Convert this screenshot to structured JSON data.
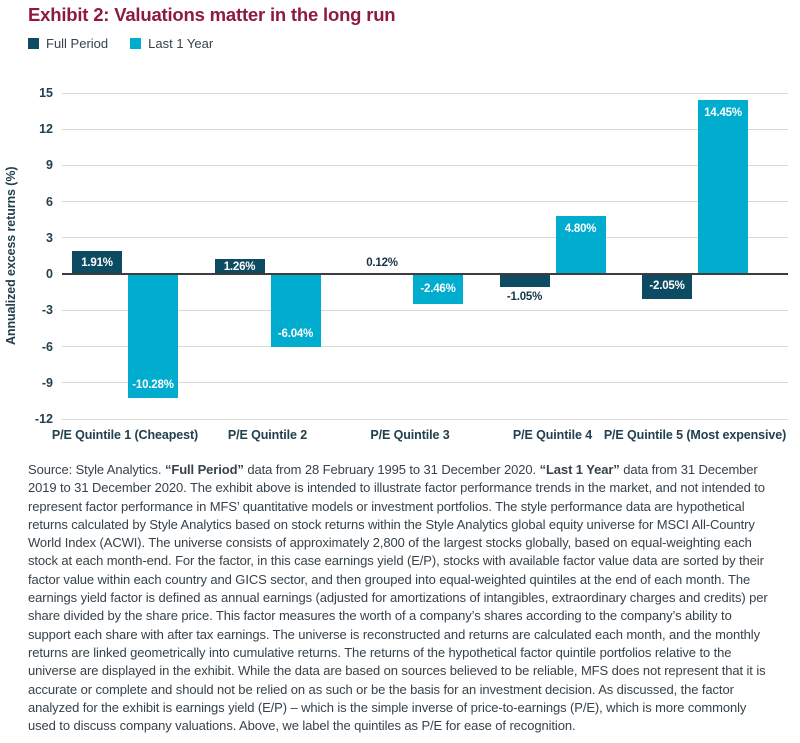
{
  "title": "Exhibit 2: Valuations matter in the long run",
  "colors": {
    "title": "#8e1b3d",
    "full_period": "#0d4b63",
    "last_1_year": "#00adce",
    "axis_text": "#22404f",
    "body_text": "#37424a",
    "gridline": "#d9d9d9",
    "zero_line": "#3d3d3d"
  },
  "legend": {
    "items": [
      {
        "label": "Full Period",
        "color": "#0d4b63"
      },
      {
        "label": "Last 1 Year",
        "color": "#00adce"
      }
    ]
  },
  "chart_data": {
    "type": "bar",
    "title": "Exhibit 2: Valuations matter in the long run",
    "ylabel": "Annualized excess returns (%)",
    "xlabel": "",
    "ylim": [
      -12,
      15
    ],
    "yticks": [
      15,
      12,
      9,
      6,
      3,
      0,
      -3,
      -6,
      -9,
      -12
    ],
    "grid": true,
    "legend_position": "top-left",
    "categories": [
      "P/E Quintile 1 (Cheapest)",
      "P/E Quintile 2",
      "P/E Quintile 3",
      "P/E Quintile 4",
      "P/E Quintile 5 (Most expensive)"
    ],
    "series": [
      {
        "name": "Full Period",
        "color": "#0d4b63",
        "values": [
          1.91,
          1.26,
          0.12,
          -1.05,
          -2.05
        ],
        "labels": [
          "1.91%",
          "1.26%",
          "0.12%",
          "-1.05%",
          "-2.05%"
        ]
      },
      {
        "name": "Last 1 Year",
        "color": "#00adce",
        "values": [
          -10.28,
          -6.04,
          -2.46,
          4.8,
          14.45
        ],
        "labels": [
          "-10.28%",
          "-6.04%",
          "-2.46%",
          "4.80%",
          "14.45%"
        ]
      }
    ]
  },
  "footnote": {
    "part1": "Source: Style Analytics. ",
    "bold1": "“Full Period”",
    "part2": " data from 28 February 1995 to 31 December 2020. ",
    "bold2": "“Last 1 Year”",
    "part3": " data from 31 December 2019 to 31 December 2020. The exhibit above is intended to illustrate factor performance trends in the market, and not intended to represent factor performance in MFS’ quantitative models or investment portfolios. The style performance data are hypothetical returns calculated by Style Analytics based on stock returns within the Style Analytics global equity universe for MSCI All-Country World Index (ACWI). The universe consists of approximately 2,800 of the largest stocks globally, based on equal-weighting each stock at each month-end. For the factor, in this case earnings yield (E/P), stocks with available factor value data are sorted by their factor value within each country and GICS sector, and then grouped into equal-weighted quintiles at the end of each month. The earnings yield factor is defined as annual earnings (adjusted for amortizations of intangibles, extraordinary charges and credits) per share divided by the share price. This factor measures the worth of a company’s shares according to the company’s ability to support each share with after tax earnings. The universe is reconstructed and returns are calculated each month, and the monthly returns are linked geometrically into cumulative returns. The returns of the hypothetical factor quintile portfolios relative to the universe are displayed in the exhibit. While the data are based on sources believed to be reliable, MFS does not represent that it is accurate or complete and should not be relied on as such or be the basis for an investment decision. As discussed, the factor analyzed for the exhibit is earnings yield (E/P) – which is the simple inverse of price-to-earnings (P/E), which is more commonly used to discuss company valuations. Above, we label the quintiles as P/E for ease of recognition."
  }
}
